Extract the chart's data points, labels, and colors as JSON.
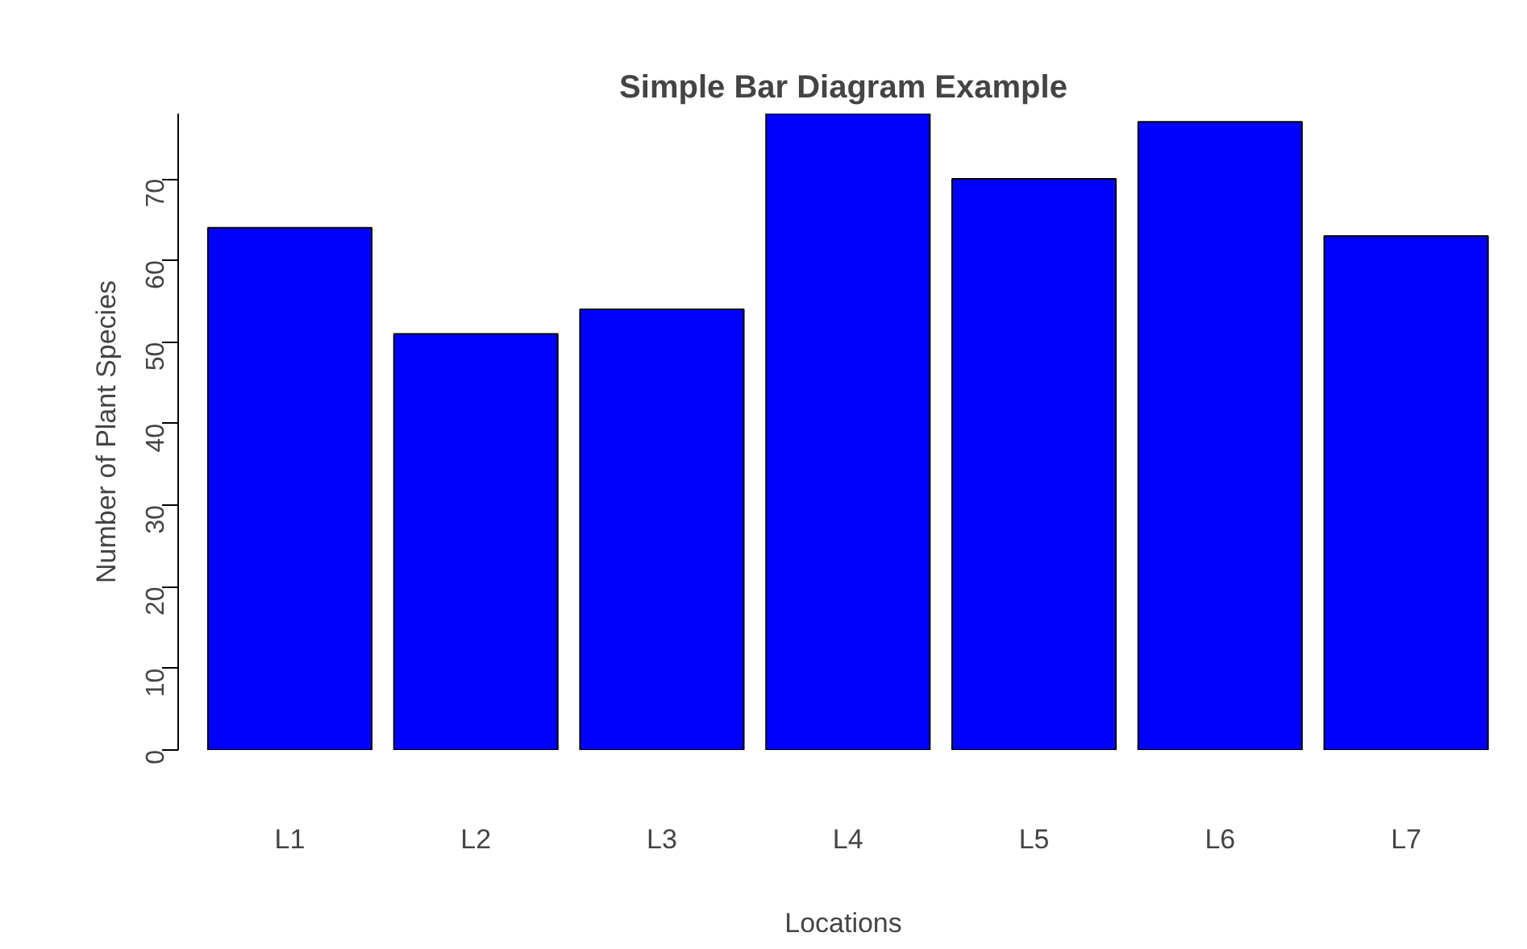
{
  "chart_data": {
    "type": "bar",
    "title": "Simple Bar Diagram Example",
    "xlabel": "Locations",
    "ylabel": "Number of Plant Species",
    "categories": [
      "L1",
      "L2",
      "L3",
      "L4",
      "L5",
      "L6",
      "L7"
    ],
    "values": [
      64,
      51,
      54,
      78,
      70,
      77,
      63
    ],
    "color": "#0000ff",
    "ylim": [
      0,
      78
    ],
    "yticks": [
      0,
      10,
      20,
      30,
      40,
      50,
      60,
      70
    ],
    "grid": false
  }
}
